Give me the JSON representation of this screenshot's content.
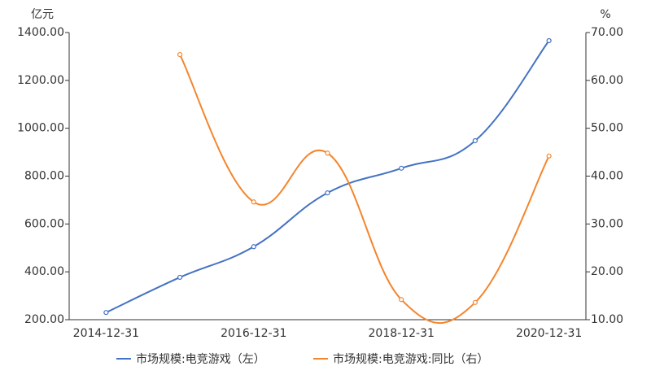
{
  "chart_data": {
    "type": "line",
    "y_label": "亿元",
    "y2_label": "%",
    "categories": [
      "2014-12-31",
      null,
      "2016-12-31",
      null,
      "2018-12-31",
      null,
      "2020-12-31"
    ],
    "series": [
      {
        "name": "市场规模:电竞游戏（左）",
        "color": "#4472c4",
        "values": [
          230,
          377,
          505,
          730,
          833,
          948,
          1366
        ]
      },
      {
        "name": "市场规模:电竞游戏:同比（右）",
        "color": "#f5852c",
        "axis": "y2",
        "values": [
          null,
          65.4,
          34.6,
          44.8,
          14.2,
          13.6,
          44.2
        ]
      }
    ],
    "ylim": [
      200,
      1400
    ],
    "yticks": [
      {
        "value": 200,
        "label": "200.00"
      },
      {
        "value": 400,
        "label": "400.00"
      },
      {
        "value": 600,
        "label": "600.00"
      },
      {
        "value": 800,
        "label": "800.00"
      },
      {
        "value": 1000,
        "label": "1000.00"
      },
      {
        "value": 1200,
        "label": "1200.00"
      },
      {
        "value": 1400,
        "label": "1400.00"
      }
    ],
    "y2lim": [
      10,
      70
    ],
    "y2ticks": [
      {
        "value": 10,
        "label": "10.00"
      },
      {
        "value": 20,
        "label": "20.00"
      },
      {
        "value": 30,
        "label": "30.00"
      },
      {
        "value": 40,
        "label": "40.00"
      },
      {
        "value": 50,
        "label": "50.00"
      },
      {
        "value": 60,
        "label": "60.00"
      },
      {
        "value": 70,
        "label": "70.00"
      }
    ],
    "legend": "bottom"
  }
}
